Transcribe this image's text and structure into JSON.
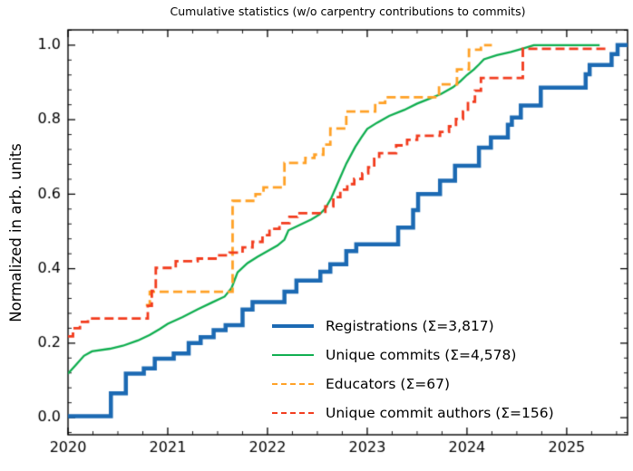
{
  "title": "Cumulative statistics (w/o carpentry contributions to commits)",
  "legend": {
    "items": [
      {
        "label": "Registrations  (Σ=3,817)",
        "series": 0
      },
      {
        "label": "Unique commits (Σ=4,578)",
        "series": 1
      },
      {
        "label": "Educators (Σ=67)",
        "series": 2
      },
      {
        "label": "Unique commit authors (Σ=156)",
        "series": 3
      }
    ]
  },
  "chart_data": {
    "type": "line",
    "title": "Cumulative statistics (w/o carpentry contributions to commits)",
    "xlabel": "",
    "ylabel": "Normalized in arb. units",
    "xlim": [
      2020,
      2025.61
    ],
    "ylim": [
      -0.046,
      1.041
    ],
    "xticks": [
      2020,
      2021,
      2022,
      2023,
      2024,
      2025
    ],
    "xtick_labels": [
      "2020",
      "2021",
      "2022",
      "2023",
      "2024",
      "2025"
    ],
    "x_minor_step": 0.25,
    "yticks": [
      0.0,
      0.2,
      0.4,
      0.6,
      0.8,
      1.0
    ],
    "ytick_labels": [
      "0.0",
      "0.2",
      "0.4",
      "0.6",
      "0.8",
      "1.0"
    ],
    "y_minor_step": 0.04,
    "grid": false,
    "tick_direction": "in",
    "ticks_all_sides": true,
    "legend_position": "inside lower right",
    "series": [
      {
        "name": "Registrations",
        "total": "3,817",
        "color": "#1c6ab3",
        "line_width": 4.5,
        "dash": null,
        "interp": "step",
        "points": [
          [
            2020.0,
            0.004
          ],
          [
            2020.43,
            0.065
          ],
          [
            2020.58,
            0.118
          ],
          [
            2020.76,
            0.132
          ],
          [
            2020.87,
            0.158
          ],
          [
            2021.06,
            0.172
          ],
          [
            2021.21,
            0.2
          ],
          [
            2021.33,
            0.216
          ],
          [
            2021.46,
            0.235
          ],
          [
            2021.58,
            0.248
          ],
          [
            2021.75,
            0.29
          ],
          [
            2021.85,
            0.31
          ],
          [
            2022.17,
            0.338
          ],
          [
            2022.29,
            0.368
          ],
          [
            2022.53,
            0.392
          ],
          [
            2022.63,
            0.412
          ],
          [
            2022.79,
            0.447
          ],
          [
            2022.89,
            0.465
          ],
          [
            2023.31,
            0.51
          ],
          [
            2023.46,
            0.557
          ],
          [
            2023.51,
            0.6
          ],
          [
            2023.73,
            0.636
          ],
          [
            2023.88,
            0.676
          ],
          [
            2024.12,
            0.725
          ],
          [
            2024.24,
            0.752
          ],
          [
            2024.41,
            0.786
          ],
          [
            2024.45,
            0.806
          ],
          [
            2024.54,
            0.838
          ],
          [
            2024.74,
            0.886
          ],
          [
            2025.19,
            0.922
          ],
          [
            2025.23,
            0.947
          ],
          [
            2025.45,
            0.976
          ],
          [
            2025.51,
            1.0
          ],
          [
            2025.61,
            1.0
          ]
        ]
      },
      {
        "name": "Unique commits",
        "total": "4,578",
        "color": "#0fae4f",
        "line_width": 2.3,
        "dash": null,
        "interp": "linear",
        "points": [
          [
            2020.0,
            0.118
          ],
          [
            2020.08,
            0.142
          ],
          [
            2020.16,
            0.166
          ],
          [
            2020.24,
            0.178
          ],
          [
            2020.42,
            0.185
          ],
          [
            2020.55,
            0.193
          ],
          [
            2020.7,
            0.207
          ],
          [
            2020.82,
            0.222
          ],
          [
            2020.92,
            0.238
          ],
          [
            2021.0,
            0.252
          ],
          [
            2021.15,
            0.27
          ],
          [
            2021.3,
            0.291
          ],
          [
            2021.45,
            0.31
          ],
          [
            2021.57,
            0.325
          ],
          [
            2021.64,
            0.348
          ],
          [
            2021.7,
            0.39
          ],
          [
            2021.8,
            0.415
          ],
          [
            2021.9,
            0.432
          ],
          [
            2022.0,
            0.447
          ],
          [
            2022.1,
            0.462
          ],
          [
            2022.17,
            0.478
          ],
          [
            2022.21,
            0.503
          ],
          [
            2022.33,
            0.518
          ],
          [
            2022.44,
            0.532
          ],
          [
            2022.52,
            0.545
          ],
          [
            2022.58,
            0.562
          ],
          [
            2022.64,
            0.59
          ],
          [
            2022.71,
            0.633
          ],
          [
            2022.79,
            0.682
          ],
          [
            2022.88,
            0.727
          ],
          [
            2022.94,
            0.752
          ],
          [
            2023.0,
            0.775
          ],
          [
            2023.1,
            0.792
          ],
          [
            2023.22,
            0.81
          ],
          [
            2023.37,
            0.826
          ],
          [
            2023.5,
            0.843
          ],
          [
            2023.62,
            0.856
          ],
          [
            2023.74,
            0.869
          ],
          [
            2023.86,
            0.887
          ],
          [
            2023.93,
            0.902
          ],
          [
            2024.0,
            0.92
          ],
          [
            2024.07,
            0.935
          ],
          [
            2024.12,
            0.948
          ],
          [
            2024.17,
            0.962
          ],
          [
            2024.3,
            0.973
          ],
          [
            2024.44,
            0.982
          ],
          [
            2024.56,
            0.991
          ],
          [
            2024.67,
            1.0
          ],
          [
            2025.33,
            1.0
          ]
        ]
      },
      {
        "name": "Educators",
        "total": "67",
        "color": "#ffa126",
        "line_width": 2.8,
        "dash": [
          10,
          5
        ],
        "interp": "step",
        "points": [
          [
            2020.78,
            0.302
          ],
          [
            2020.82,
            0.338
          ],
          [
            2021.65,
            0.582
          ],
          [
            2021.88,
            0.6
          ],
          [
            2021.96,
            0.618
          ],
          [
            2022.17,
            0.684
          ],
          [
            2022.38,
            0.697
          ],
          [
            2022.47,
            0.706
          ],
          [
            2022.56,
            0.733
          ],
          [
            2022.63,
            0.776
          ],
          [
            2022.79,
            0.822
          ],
          [
            2023.08,
            0.845
          ],
          [
            2023.18,
            0.86
          ],
          [
            2023.72,
            0.895
          ],
          [
            2023.9,
            0.935
          ],
          [
            2024.02,
            0.988
          ],
          [
            2024.14,
            1.0
          ],
          [
            2024.25,
            1.0
          ]
        ]
      },
      {
        "name": "Unique commit authors",
        "total": "156",
        "color": "#f23c1e",
        "line_width": 2.8,
        "dash": [
          10,
          5
        ],
        "interp": "step",
        "points": [
          [
            2020.0,
            0.218
          ],
          [
            2020.05,
            0.24
          ],
          [
            2020.12,
            0.257
          ],
          [
            2020.2,
            0.266
          ],
          [
            2020.8,
            0.3
          ],
          [
            2020.84,
            0.34
          ],
          [
            2020.88,
            0.402
          ],
          [
            2021.08,
            0.42
          ],
          [
            2021.3,
            0.427
          ],
          [
            2021.5,
            0.436
          ],
          [
            2021.62,
            0.443
          ],
          [
            2021.75,
            0.457
          ],
          [
            2021.85,
            0.472
          ],
          [
            2021.95,
            0.49
          ],
          [
            2022.02,
            0.507
          ],
          [
            2022.12,
            0.522
          ],
          [
            2022.22,
            0.539
          ],
          [
            2022.3,
            0.549
          ],
          [
            2022.58,
            0.567
          ],
          [
            2022.66,
            0.592
          ],
          [
            2022.73,
            0.612
          ],
          [
            2022.8,
            0.627
          ],
          [
            2022.87,
            0.641
          ],
          [
            2022.95,
            0.656
          ],
          [
            2023.01,
            0.672
          ],
          [
            2023.07,
            0.695
          ],
          [
            2023.12,
            0.71
          ],
          [
            2023.29,
            0.731
          ],
          [
            2023.4,
            0.746
          ],
          [
            2023.5,
            0.757
          ],
          [
            2023.73,
            0.767
          ],
          [
            2023.82,
            0.782
          ],
          [
            2023.89,
            0.802
          ],
          [
            2023.96,
            0.822
          ],
          [
            2024.01,
            0.848
          ],
          [
            2024.08,
            0.878
          ],
          [
            2024.14,
            0.912
          ],
          [
            2024.56,
            0.99
          ],
          [
            2025.42,
            0.99
          ]
        ]
      }
    ]
  }
}
